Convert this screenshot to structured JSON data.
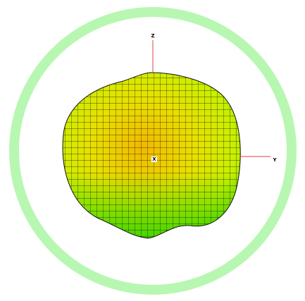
{
  "axes": {
    "z": "Z",
    "y": "Y",
    "x": "X"
  }
}
